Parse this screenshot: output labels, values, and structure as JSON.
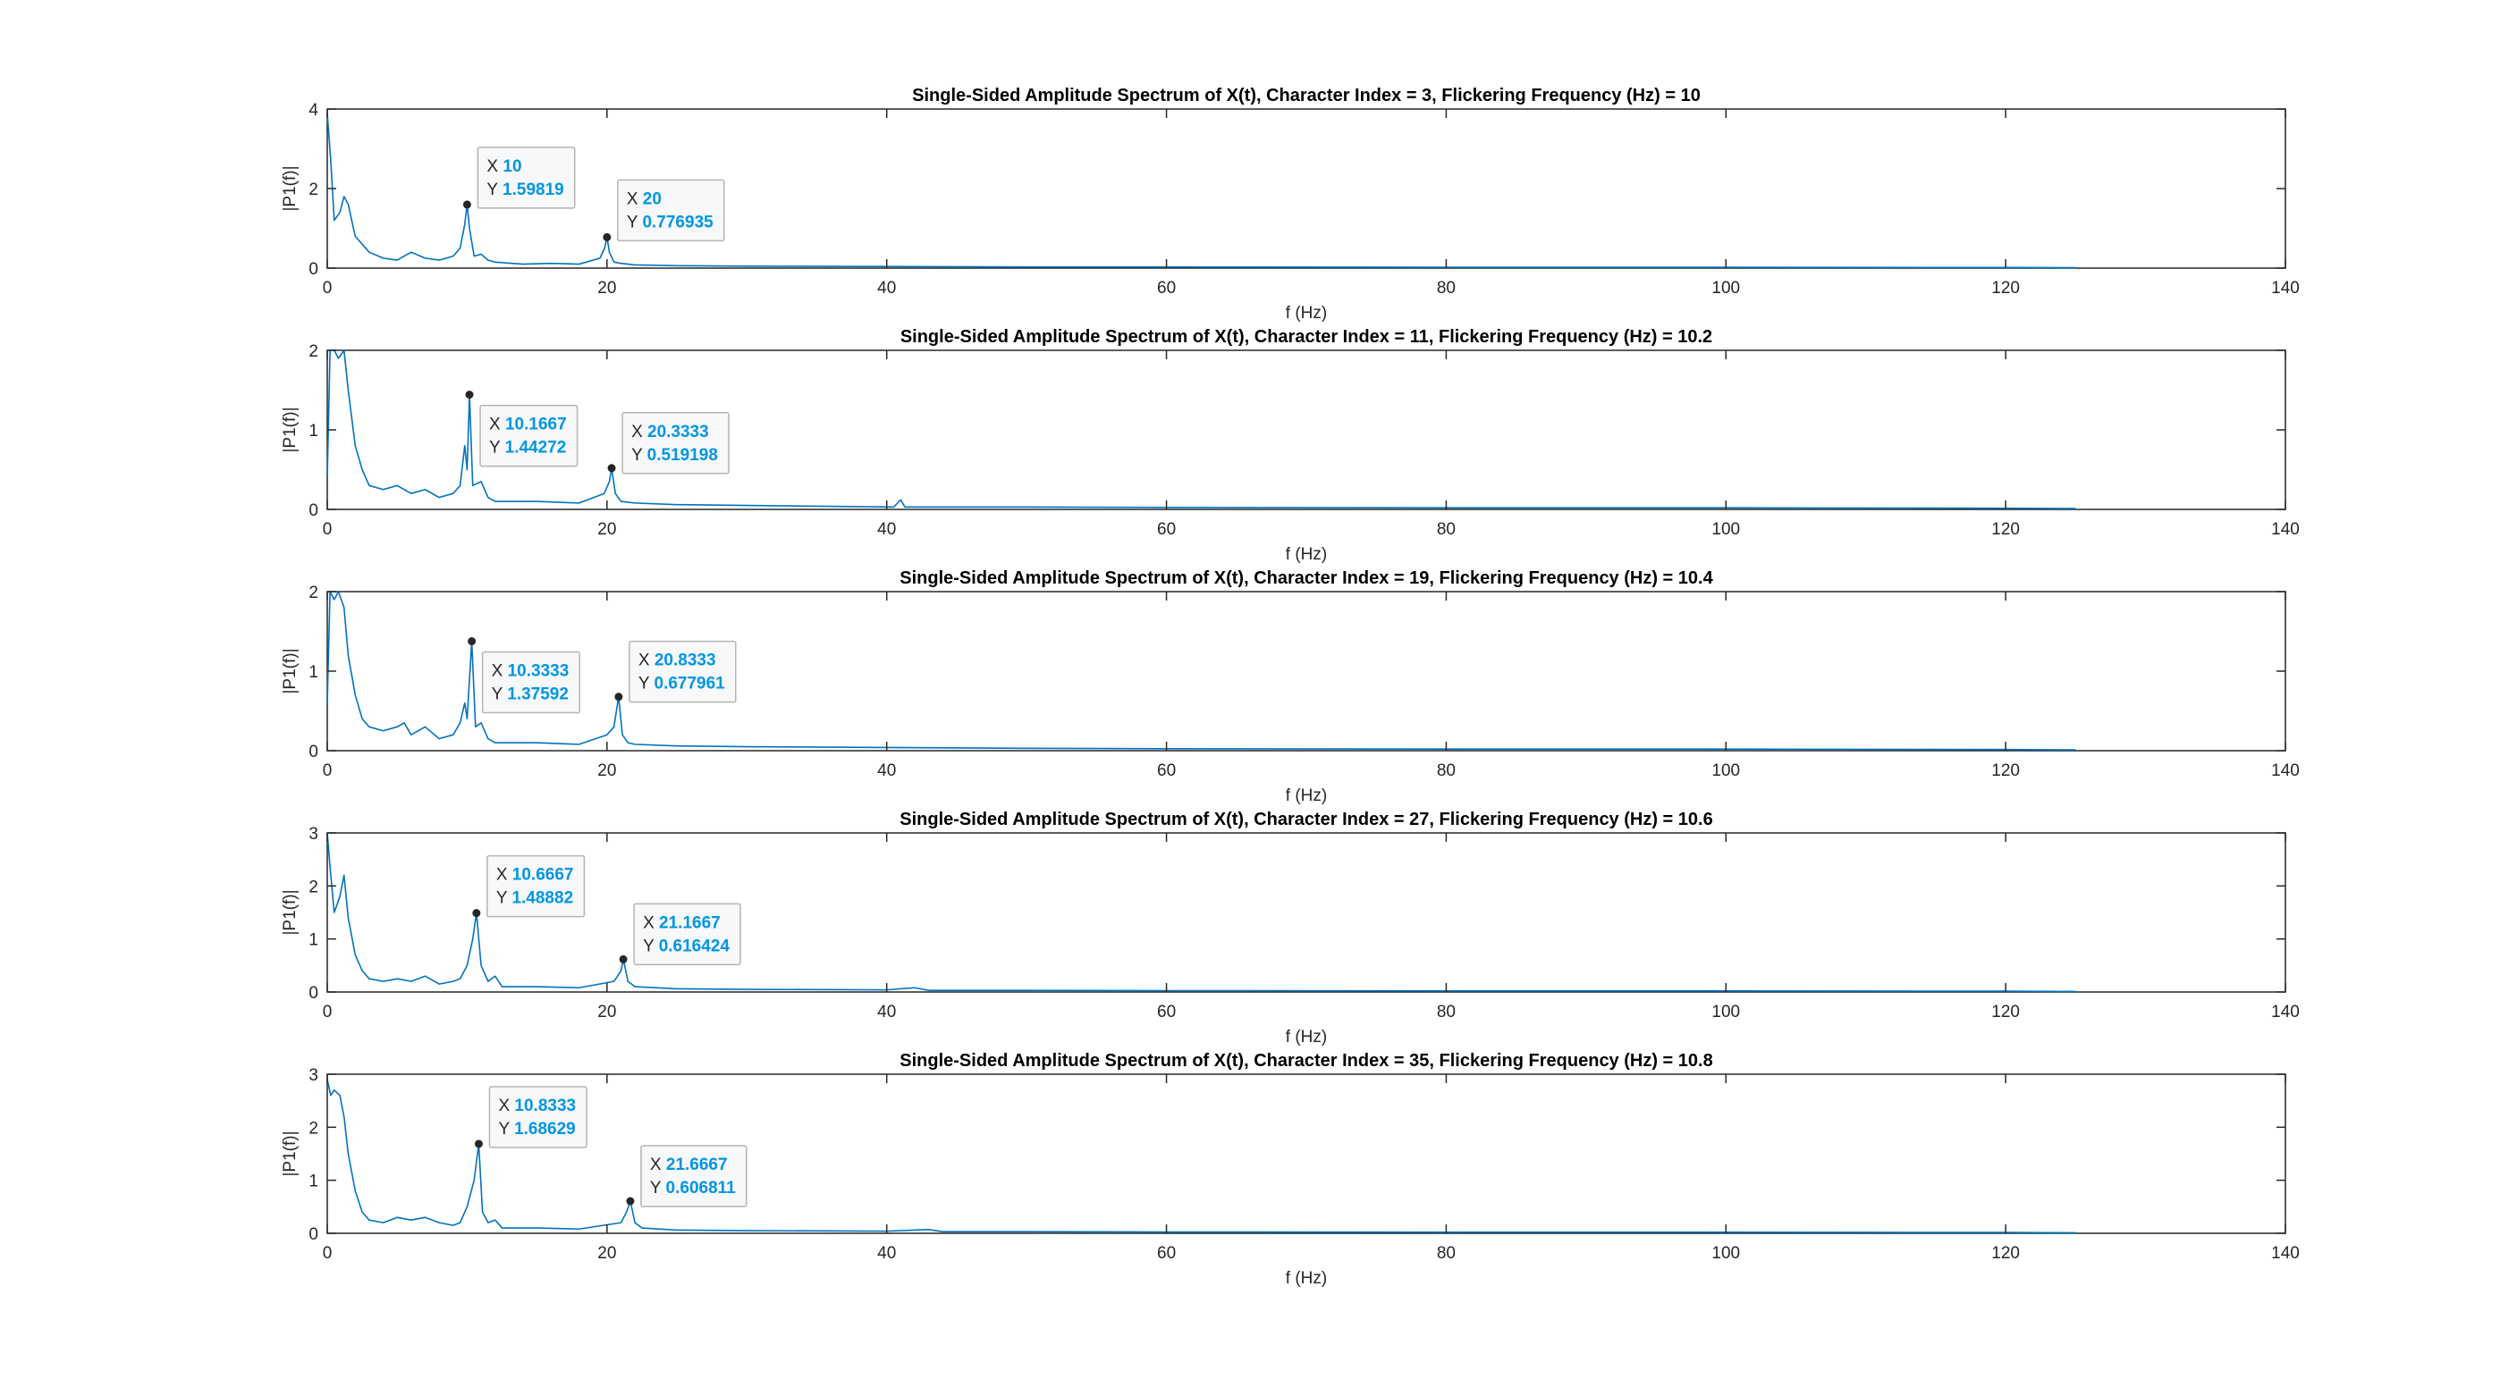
{
  "chart_data": [
    {
      "type": "line",
      "title": "Single-Sided Amplitude Spectrum of X(t), Character Index = 3, Flickering Frequency (Hz) = 10",
      "xlabel": "f (Hz)",
      "ylabel": "|P1(f)|",
      "xlim": [
        0,
        140
      ],
      "ylim": [
        0,
        4
      ],
      "xticks": [
        0,
        20,
        40,
        60,
        80,
        100,
        120,
        140
      ],
      "yticks": [
        0,
        2,
        4
      ],
      "grid": false,
      "series_color": "#0072BD",
      "x_max": 125,
      "series": {
        "points": [
          [
            0,
            3.9
          ],
          [
            0.25,
            2.7
          ],
          [
            0.5,
            1.2
          ],
          [
            0.9,
            1.4
          ],
          [
            1.2,
            1.8
          ],
          [
            1.5,
            1.6
          ],
          [
            2,
            0.8
          ],
          [
            2.5,
            0.6
          ],
          [
            3,
            0.4
          ],
          [
            4,
            0.25
          ],
          [
            5,
            0.2
          ],
          [
            6,
            0.4
          ],
          [
            7,
            0.25
          ],
          [
            8,
            0.2
          ],
          [
            9,
            0.3
          ],
          [
            9.5,
            0.5
          ],
          [
            9.83,
            1.1
          ],
          [
            10,
            1.59819
          ],
          [
            10.17,
            1.0
          ],
          [
            10.5,
            0.3
          ],
          [
            11,
            0.35
          ],
          [
            11.5,
            0.2
          ],
          [
            12,
            0.15
          ],
          [
            14,
            0.1
          ],
          [
            16,
            0.12
          ],
          [
            18,
            0.1
          ],
          [
            19.5,
            0.25
          ],
          [
            19.83,
            0.5
          ],
          [
            20,
            0.776935
          ],
          [
            20.17,
            0.4
          ],
          [
            20.5,
            0.15
          ],
          [
            21,
            0.12
          ],
          [
            22,
            0.08
          ],
          [
            25,
            0.06
          ],
          [
            30,
            0.05
          ],
          [
            40,
            0.04
          ],
          [
            50,
            0.03
          ],
          [
            60,
            0.03
          ],
          [
            80,
            0.02
          ],
          [
            100,
            0.02
          ],
          [
            120,
            0.015
          ],
          [
            125,
            0.01
          ]
        ]
      },
      "datatips": [
        {
          "x": 10,
          "y": 1.59819,
          "x_label": "X",
          "y_label": "Y",
          "x_text": "10",
          "y_text": "1.59819"
        },
        {
          "x": 20,
          "y": 0.776935,
          "x_label": "X",
          "y_label": "Y",
          "x_text": "20",
          "y_text": "0.776935"
        }
      ]
    },
    {
      "type": "line",
      "title": "Single-Sided Amplitude Spectrum of X(t), Character Index = 11, Flickering Frequency (Hz) = 10.2",
      "xlabel": "f (Hz)",
      "ylabel": "|P1(f)|",
      "xlim": [
        0,
        140
      ],
      "ylim": [
        0,
        2
      ],
      "xticks": [
        0,
        20,
        40,
        60,
        80,
        100,
        120,
        140
      ],
      "yticks": [
        0,
        1,
        2
      ],
      "grid": false,
      "series_color": "#0072BD",
      "x_max": 125,
      "series": {
        "points": [
          [
            0,
            0.4
          ],
          [
            0.2,
            2.0
          ],
          [
            0.5,
            2.0
          ],
          [
            0.8,
            1.9
          ],
          [
            1.2,
            2.0
          ],
          [
            1.5,
            1.5
          ],
          [
            2,
            0.8
          ],
          [
            2.5,
            0.5
          ],
          [
            3,
            0.3
          ],
          [
            4,
            0.25
          ],
          [
            5,
            0.3
          ],
          [
            6,
            0.2
          ],
          [
            7,
            0.25
          ],
          [
            8,
            0.15
          ],
          [
            9,
            0.2
          ],
          [
            9.5,
            0.3
          ],
          [
            9.83,
            0.8
          ],
          [
            10,
            0.5
          ],
          [
            10.17,
            1.44272
          ],
          [
            10.4,
            0.3
          ],
          [
            11,
            0.35
          ],
          [
            11.5,
            0.15
          ],
          [
            12,
            0.1
          ],
          [
            15,
            0.1
          ],
          [
            18,
            0.08
          ],
          [
            19.8,
            0.2
          ],
          [
            20.17,
            0.35
          ],
          [
            20.3333,
            0.519198
          ],
          [
            20.6,
            0.2
          ],
          [
            21,
            0.1
          ],
          [
            22,
            0.08
          ],
          [
            25,
            0.06
          ],
          [
            30,
            0.05
          ],
          [
            35,
            0.04
          ],
          [
            40.5,
            0.03
          ],
          [
            41,
            0.12
          ],
          [
            41.3,
            0.03
          ],
          [
            50,
            0.03
          ],
          [
            60,
            0.025
          ],
          [
            80,
            0.02
          ],
          [
            100,
            0.02
          ],
          [
            120,
            0.015
          ],
          [
            125,
            0.01
          ]
        ]
      },
      "datatips": [
        {
          "x": 10.1667,
          "y": 1.44272,
          "x_label": "X",
          "y_label": "Y",
          "x_text": "10.1667",
          "y_text": "1.44272"
        },
        {
          "x": 20.3333,
          "y": 0.519198,
          "x_label": "X",
          "y_label": "Y",
          "x_text": "20.3333",
          "y_text": "0.519198"
        }
      ]
    },
    {
      "type": "line",
      "title": "Single-Sided Amplitude Spectrum of X(t), Character Index = 19, Flickering Frequency (Hz) = 10.4",
      "xlabel": "f (Hz)",
      "ylabel": "|P1(f)|",
      "xlim": [
        0,
        140
      ],
      "ylim": [
        0,
        2
      ],
      "xticks": [
        0,
        20,
        40,
        60,
        80,
        100,
        120,
        140
      ],
      "yticks": [
        0,
        1,
        2
      ],
      "grid": false,
      "series_color": "#0072BD",
      "x_max": 125,
      "series": {
        "points": [
          [
            0,
            0.6
          ],
          [
            0.2,
            2.0
          ],
          [
            0.5,
            1.9
          ],
          [
            0.8,
            2.0
          ],
          [
            1.2,
            1.8
          ],
          [
            1.5,
            1.2
          ],
          [
            2,
            0.7
          ],
          [
            2.5,
            0.4
          ],
          [
            3,
            0.3
          ],
          [
            4,
            0.25
          ],
          [
            5,
            0.3
          ],
          [
            5.5,
            0.35
          ],
          [
            6,
            0.2
          ],
          [
            7,
            0.3
          ],
          [
            8,
            0.15
          ],
          [
            9,
            0.2
          ],
          [
            9.5,
            0.35
          ],
          [
            9.83,
            0.6
          ],
          [
            10,
            0.4
          ],
          [
            10.33,
            1.37592
          ],
          [
            10.6,
            0.3
          ],
          [
            11,
            0.35
          ],
          [
            11.5,
            0.15
          ],
          [
            12,
            0.1
          ],
          [
            15,
            0.1
          ],
          [
            18,
            0.08
          ],
          [
            20,
            0.2
          ],
          [
            20.5,
            0.3
          ],
          [
            20.83,
            0.677961
          ],
          [
            21.1,
            0.2
          ],
          [
            21.5,
            0.1
          ],
          [
            22,
            0.08
          ],
          [
            25,
            0.06
          ],
          [
            30,
            0.05
          ],
          [
            40,
            0.04
          ],
          [
            50,
            0.03
          ],
          [
            60,
            0.025
          ],
          [
            80,
            0.02
          ],
          [
            100,
            0.02
          ],
          [
            120,
            0.015
          ],
          [
            125,
            0.01
          ]
        ]
      },
      "datatips": [
        {
          "x": 10.3333,
          "y": 1.37592,
          "x_label": "X",
          "y_label": "Y",
          "x_text": "10.3333",
          "y_text": "1.37592"
        },
        {
          "x": 20.8333,
          "y": 0.677961,
          "x_label": "X",
          "y_label": "Y",
          "x_text": "20.8333",
          "y_text": "0.677961"
        }
      ]
    },
    {
      "type": "line",
      "title": "Single-Sided Amplitude Spectrum of X(t), Character Index = 27, Flickering Frequency (Hz) = 10.6",
      "xlabel": "f (Hz)",
      "ylabel": "|P1(f)|",
      "xlim": [
        0,
        140
      ],
      "ylim": [
        0,
        3
      ],
      "xticks": [
        0,
        20,
        40,
        60,
        80,
        100,
        120,
        140
      ],
      "yticks": [
        0,
        1,
        2,
        3
      ],
      "grid": false,
      "series_color": "#0072BD",
      "x_max": 125,
      "series": {
        "points": [
          [
            0,
            3.0
          ],
          [
            0.25,
            2.2
          ],
          [
            0.5,
            1.5
          ],
          [
            0.9,
            1.8
          ],
          [
            1.2,
            2.2
          ],
          [
            1.5,
            1.4
          ],
          [
            2,
            0.7
          ],
          [
            2.5,
            0.4
          ],
          [
            3,
            0.25
          ],
          [
            4,
            0.2
          ],
          [
            5,
            0.25
          ],
          [
            6,
            0.2
          ],
          [
            7,
            0.3
          ],
          [
            8,
            0.15
          ],
          [
            9,
            0.2
          ],
          [
            9.5,
            0.25
          ],
          [
            10,
            0.5
          ],
          [
            10.4,
            1.0
          ],
          [
            10.67,
            1.48882
          ],
          [
            11,
            0.5
          ],
          [
            11.5,
            0.2
          ],
          [
            12,
            0.3
          ],
          [
            12.5,
            0.1
          ],
          [
            15,
            0.1
          ],
          [
            18,
            0.08
          ],
          [
            20.5,
            0.2
          ],
          [
            21,
            0.4
          ],
          [
            21.17,
            0.616424
          ],
          [
            21.5,
            0.2
          ],
          [
            22,
            0.1
          ],
          [
            25,
            0.06
          ],
          [
            30,
            0.05
          ],
          [
            40,
            0.04
          ],
          [
            42,
            0.08
          ],
          [
            43,
            0.03
          ],
          [
            50,
            0.03
          ],
          [
            60,
            0.025
          ],
          [
            80,
            0.02
          ],
          [
            100,
            0.02
          ],
          [
            120,
            0.015
          ],
          [
            125,
            0.01
          ]
        ]
      },
      "datatips": [
        {
          "x": 10.6667,
          "y": 1.48882,
          "x_label": "X",
          "y_label": "Y",
          "x_text": "10.6667",
          "y_text": "1.48882"
        },
        {
          "x": 21.1667,
          "y": 0.616424,
          "x_label": "X",
          "y_label": "Y",
          "x_text": "21.1667",
          "y_text": "0.616424"
        }
      ]
    },
    {
      "type": "line",
      "title": "Single-Sided Amplitude Spectrum of X(t), Character Index = 35, Flickering Frequency (Hz) = 10.8",
      "xlabel": "f (Hz)",
      "ylabel": "|P1(f)|",
      "xlim": [
        0,
        140
      ],
      "ylim": [
        0,
        3
      ],
      "xticks": [
        0,
        20,
        40,
        60,
        80,
        100,
        120,
        140
      ],
      "yticks": [
        0,
        1,
        2,
        3
      ],
      "grid": false,
      "series_color": "#0072BD",
      "x_max": 125,
      "series": {
        "points": [
          [
            0,
            2.9
          ],
          [
            0.25,
            2.6
          ],
          [
            0.5,
            2.7
          ],
          [
            0.9,
            2.6
          ],
          [
            1.2,
            2.2
          ],
          [
            1.5,
            1.5
          ],
          [
            2,
            0.8
          ],
          [
            2.5,
            0.4
          ],
          [
            3,
            0.25
          ],
          [
            4,
            0.2
          ],
          [
            5,
            0.3
          ],
          [
            6,
            0.25
          ],
          [
            7,
            0.3
          ],
          [
            8,
            0.2
          ],
          [
            9,
            0.15
          ],
          [
            9.5,
            0.2
          ],
          [
            10,
            0.5
          ],
          [
            10.5,
            1.0
          ],
          [
            10.83,
            1.68629
          ],
          [
            11.1,
            0.4
          ],
          [
            11.5,
            0.2
          ],
          [
            12,
            0.25
          ],
          [
            12.5,
            0.1
          ],
          [
            15,
            0.1
          ],
          [
            18,
            0.08
          ],
          [
            21,
            0.2
          ],
          [
            21.4,
            0.4
          ],
          [
            21.67,
            0.606811
          ],
          [
            22,
            0.2
          ],
          [
            22.5,
            0.1
          ],
          [
            25,
            0.06
          ],
          [
            30,
            0.05
          ],
          [
            40,
            0.04
          ],
          [
            43,
            0.07
          ],
          [
            44,
            0.03
          ],
          [
            50,
            0.03
          ],
          [
            60,
            0.025
          ],
          [
            80,
            0.02
          ],
          [
            100,
            0.02
          ],
          [
            120,
            0.015
          ],
          [
            125,
            0.01
          ]
        ]
      },
      "datatips": [
        {
          "x": 10.8333,
          "y": 1.68629,
          "x_label": "X",
          "y_label": "Y",
          "x_text": "10.8333",
          "y_text": "1.68629"
        },
        {
          "x": 21.6667,
          "y": 0.606811,
          "x_label": "X",
          "y_label": "Y",
          "x_text": "21.6667",
          "y_text": "0.606811"
        }
      ]
    }
  ]
}
